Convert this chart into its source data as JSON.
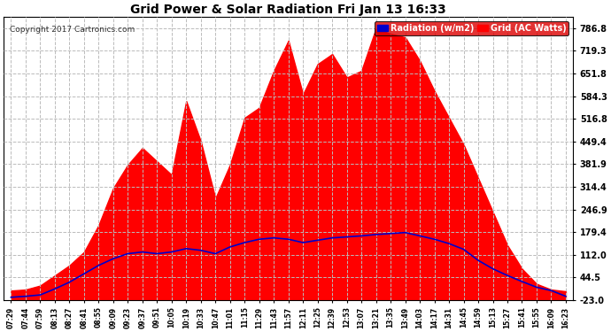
{
  "title": "Grid Power & Solar Radiation Fri Jan 13 16:33",
  "copyright": "Copyright 2017 Cartronics.com",
  "legend_radiation": "Radiation (w/m2)",
  "legend_grid": "Grid (AC Watts)",
  "yticks": [
    -23.0,
    44.5,
    112.0,
    179.4,
    246.9,
    314.4,
    381.9,
    449.4,
    516.8,
    584.3,
    651.8,
    719.3,
    786.8
  ],
  "ylim": [
    -23.0,
    820.0
  ],
  "bg_color": "#ffffff",
  "radiation_color": "#ff0000",
  "grid_line_color": "#bbbbbb",
  "title_color": "#000000",
  "xtick_labels": [
    "07:29",
    "07:44",
    "07:59",
    "08:13",
    "08:27",
    "08:41",
    "08:55",
    "09:09",
    "09:23",
    "09:37",
    "09:51",
    "10:05",
    "10:19",
    "10:33",
    "10:47",
    "11:01",
    "11:15",
    "11:29",
    "11:43",
    "11:57",
    "12:11",
    "12:25",
    "12:39",
    "12:53",
    "13:07",
    "13:21",
    "13:35",
    "13:49",
    "14:03",
    "14:17",
    "14:31",
    "14:45",
    "14:59",
    "15:13",
    "15:27",
    "15:41",
    "15:55",
    "16:09",
    "16:23"
  ],
  "radiation_values": [
    5,
    8,
    20,
    50,
    80,
    120,
    200,
    310,
    380,
    430,
    390,
    350,
    570,
    450,
    280,
    380,
    520,
    550,
    660,
    750,
    590,
    680,
    710,
    640,
    660,
    787,
    770,
    760,
    690,
    600,
    520,
    440,
    340,
    240,
    140,
    70,
    25,
    8,
    3
  ],
  "grid_ac_values": [
    -15,
    -12,
    -8,
    10,
    30,
    55,
    80,
    100,
    115,
    120,
    115,
    120,
    130,
    125,
    115,
    135,
    148,
    158,
    162,
    158,
    148,
    155,
    162,
    165,
    168,
    172,
    175,
    178,
    168,
    158,
    145,
    128,
    95,
    70,
    50,
    32,
    15,
    5,
    -12
  ]
}
